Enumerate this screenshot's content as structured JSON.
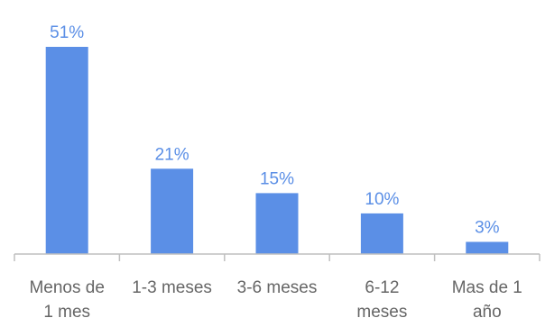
{
  "chart_data": {
    "type": "bar",
    "categories": [
      [
        "Menos de",
        "1 mes"
      ],
      [
        "1-3 meses"
      ],
      [
        "3-6 meses"
      ],
      [
        "6-12",
        "meses"
      ],
      [
        "Mas de 1",
        "año"
      ]
    ],
    "values": [
      51,
      21,
      15,
      10,
      3
    ],
    "data_labels": [
      "51%",
      "21%",
      "15%",
      "10%",
      "3%"
    ],
    "ylim": [
      0,
      55
    ],
    "grid": false,
    "legend": "none",
    "colors": {
      "bar": "#5B8FE6",
      "axis": "#BFBFBF",
      "label": "#666666",
      "value_label": "#5B8FE6"
    }
  }
}
